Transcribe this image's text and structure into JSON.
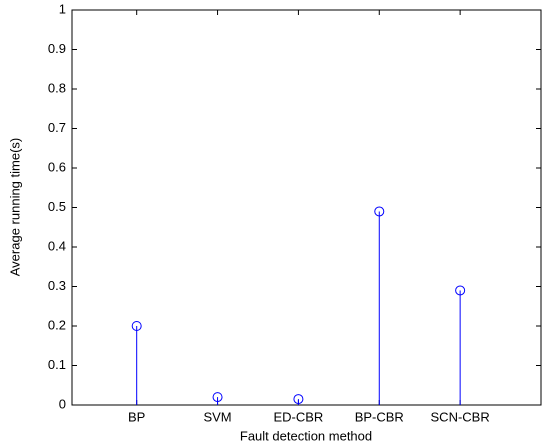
{
  "chart_data": {
    "type": "stem",
    "xlabel": "Fault detection method",
    "ylabel": "Average running time(s)",
    "categories": [
      "BP",
      "SVM",
      "ED-CBR",
      "BP-CBR",
      "SCN-CBR"
    ],
    "values": [
      0.2,
      0.02,
      0.015,
      0.49,
      0.29
    ],
    "color": "#0000ff",
    "ylim": [
      0,
      1
    ],
    "yticks": [
      0,
      0.1,
      0.2,
      0.3,
      0.4,
      0.5,
      0.6,
      0.7,
      0.8,
      0.9,
      1
    ],
    "grid": false
  }
}
